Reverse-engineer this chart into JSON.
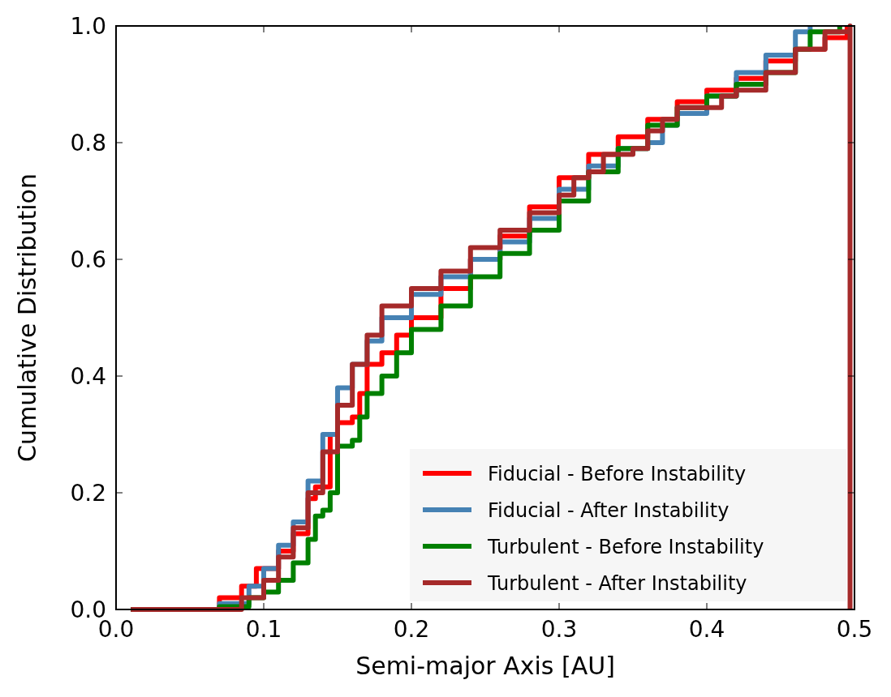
{
  "chart_data": {
    "type": "step",
    "xlabel": "Semi-major Axis [AU]",
    "ylabel": "Cumulative Distribution",
    "xlim": [
      0,
      0.5
    ],
    "ylim": [
      0,
      1
    ],
    "xticks": [
      {
        "value": 0,
        "label": "0.0"
      },
      0.1,
      0.2,
      0.3,
      0.4,
      0.5
    ],
    "yticks": [
      {
        "value": 0,
        "label": "0.0"
      },
      0.2,
      0.4,
      0.6,
      0.8,
      {
        "value": 1,
        "label": "1.0"
      }
    ],
    "grid": false,
    "legend": "bottom right",
    "line_style": "solid",
    "marker": "none",
    "series": [
      {
        "name": "Fiducial - Before Instability",
        "color": "#ff0000",
        "x": [
          0.01,
          0.05,
          0.07,
          0.085,
          0.095,
          0.11,
          0.12,
          0.13,
          0.135,
          0.14,
          0.145,
          0.15,
          0.16,
          0.165,
          0.17,
          0.18,
          0.19,
          0.2,
          0.22,
          0.24,
          0.26,
          0.28,
          0.3,
          0.32,
          0.34,
          0.36,
          0.38,
          0.4,
          0.42,
          0.44,
          0.46,
          0.48,
          0.495
        ],
        "values": [
          0,
          0,
          0.02,
          0.04,
          0.07,
          0.1,
          0.13,
          0.19,
          0.21,
          0.21,
          0.3,
          0.32,
          0.33,
          0.37,
          0.42,
          0.44,
          0.47,
          0.5,
          0.55,
          0.6,
          0.64,
          0.69,
          0.74,
          0.78,
          0.81,
          0.84,
          0.87,
          0.89,
          0.91,
          0.94,
          0.96,
          0.98,
          1.0
        ]
      },
      {
        "name": "Fiducial - After Instability",
        "color": "#4682b4",
        "x": [
          0.01,
          0.05,
          0.07,
          0.09,
          0.1,
          0.11,
          0.12,
          0.13,
          0.14,
          0.15,
          0.16,
          0.17,
          0.18,
          0.2,
          0.22,
          0.24,
          0.26,
          0.28,
          0.3,
          0.32,
          0.34,
          0.36,
          0.37,
          0.38,
          0.4,
          0.42,
          0.44,
          0.46,
          0.47
        ],
        "values": [
          0,
          0,
          0.01,
          0.04,
          0.07,
          0.11,
          0.15,
          0.22,
          0.3,
          0.38,
          0.42,
          0.46,
          0.5,
          0.54,
          0.57,
          0.6,
          0.63,
          0.67,
          0.72,
          0.76,
          0.79,
          0.8,
          0.83,
          0.85,
          0.88,
          0.92,
          0.95,
          0.99,
          1.0
        ]
      },
      {
        "name": "Turbulent - Before Instability",
        "color": "#008000",
        "x": [
          0.01,
          0.05,
          0.07,
          0.09,
          0.1,
          0.11,
          0.12,
          0.13,
          0.135,
          0.14,
          0.145,
          0.15,
          0.16,
          0.165,
          0.17,
          0.18,
          0.19,
          0.2,
          0.22,
          0.24,
          0.26,
          0.28,
          0.3,
          0.32,
          0.34,
          0.36,
          0.38,
          0.4,
          0.42,
          0.44,
          0.46,
          0.47,
          0.49
        ],
        "values": [
          0,
          0,
          0.005,
          0.02,
          0.03,
          0.05,
          0.08,
          0.12,
          0.16,
          0.17,
          0.2,
          0.28,
          0.29,
          0.33,
          0.37,
          0.4,
          0.44,
          0.48,
          0.52,
          0.57,
          0.61,
          0.65,
          0.7,
          0.75,
          0.79,
          0.83,
          0.86,
          0.88,
          0.9,
          0.92,
          0.96,
          0.99,
          1.0
        ]
      },
      {
        "name": "Turbulent - After Instability",
        "color": "#a52a2a",
        "x": [
          0.01,
          0.075,
          0.085,
          0.1,
          0.11,
          0.12,
          0.13,
          0.14,
          0.15,
          0.16,
          0.17,
          0.18,
          0.2,
          0.22,
          0.24,
          0.26,
          0.28,
          0.3,
          0.31,
          0.32,
          0.33,
          0.35,
          0.36,
          0.37,
          0.38,
          0.4,
          0.41,
          0.42,
          0.44,
          0.46,
          0.48,
          0.497,
          0.497
        ],
        "values": [
          0,
          0,
          0.02,
          0.05,
          0.09,
          0.14,
          0.2,
          0.27,
          0.35,
          0.42,
          0.47,
          0.52,
          0.55,
          0.58,
          0.62,
          0.65,
          0.68,
          0.71,
          0.74,
          0.75,
          0.78,
          0.79,
          0.82,
          0.84,
          0.86,
          0.86,
          0.88,
          0.89,
          0.92,
          0.96,
          0.99,
          1.0,
          0
        ]
      }
    ]
  }
}
